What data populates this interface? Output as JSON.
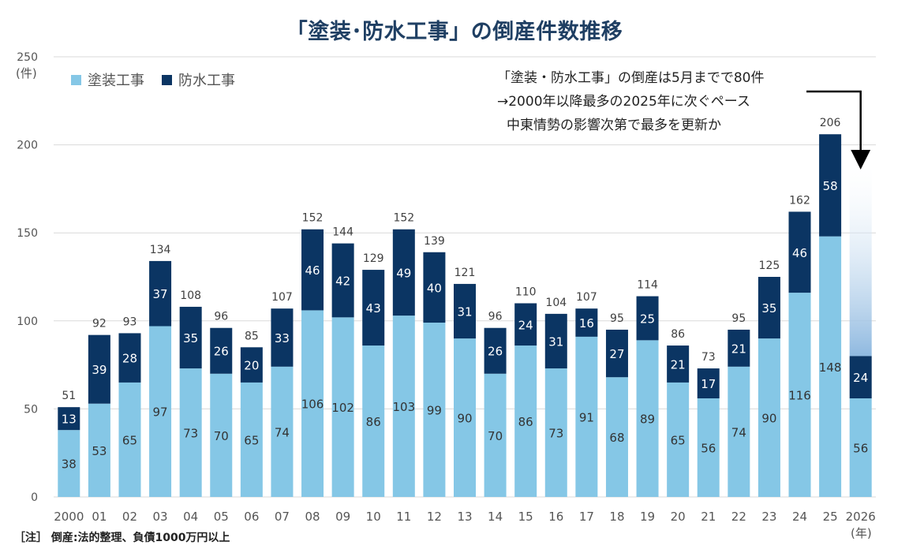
{
  "title": "「塗装･防水工事」の倒産件数推移",
  "unit_label": "(件)",
  "x_unit_label": "(年)",
  "note": "［注］ 倒産:法的整理、負債1000万円以上",
  "annotation": {
    "line1": "「塗装・防水工事」の倒産は5月までで80件",
    "line2": "→2000年以降最多の2025年に次ぐペース",
    "line3": "中東情勢の影響次第で最多を更新か"
  },
  "colors": {
    "series1": "#85c7e6",
    "series2": "#0b3563",
    "grid": "#d9d9d9",
    "projection": "#8fb9e0"
  },
  "chart_data": {
    "type": "bar",
    "stacked": true,
    "categories": [
      "2000",
      "01",
      "02",
      "03",
      "04",
      "05",
      "06",
      "07",
      "08",
      "09",
      "10",
      "11",
      "12",
      "13",
      "14",
      "15",
      "16",
      "17",
      "18",
      "19",
      "20",
      "21",
      "22",
      "23",
      "24",
      "25",
      "2026"
    ],
    "series": [
      {
        "name": "塗装工事",
        "values": [
          38,
          53,
          65,
          97,
          73,
          70,
          65,
          74,
          106,
          102,
          86,
          103,
          99,
          90,
          70,
          86,
          73,
          91,
          68,
          89,
          65,
          56,
          74,
          90,
          116,
          148,
          56
        ]
      },
      {
        "name": "防水工事",
        "values": [
          13,
          39,
          28,
          37,
          35,
          26,
          20,
          33,
          46,
          42,
          43,
          49,
          40,
          31,
          26,
          24,
          31,
          16,
          27,
          25,
          21,
          17,
          21,
          35,
          46,
          58,
          24
        ]
      }
    ],
    "totals": [
      51,
      92,
      93,
      134,
      108,
      96,
      85,
      107,
      152,
      144,
      129,
      152,
      139,
      121,
      96,
      110,
      104,
      107,
      95,
      114,
      86,
      73,
      95,
      125,
      162,
      206,
      null
    ],
    "projection": {
      "category": "2026",
      "value": 188
    },
    "ylim": [
      0,
      250
    ],
    "yticks": [
      0,
      50,
      100,
      150,
      200,
      250
    ],
    "grid": true,
    "legend_position": "top-left"
  }
}
